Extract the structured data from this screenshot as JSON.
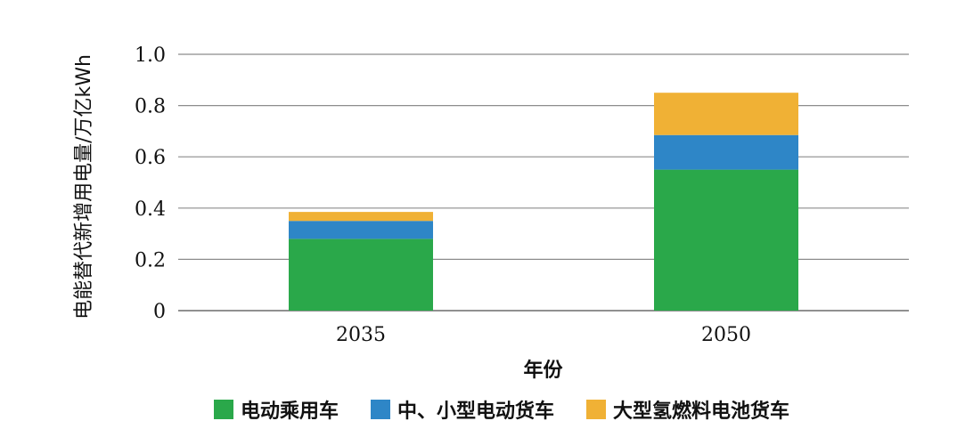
{
  "chart_data": {
    "type": "bar",
    "stacked": true,
    "categories": [
      "2035",
      "2050"
    ],
    "series": [
      {
        "name": "电动乘用车",
        "color": "#2AA84A",
        "values": [
          0.28,
          0.55
        ]
      },
      {
        "name": "中、小型电动货车",
        "color": "#2E86C7",
        "values": [
          0.07,
          0.135
        ]
      },
      {
        "name": "大型氢燃料电池货车",
        "color": "#F0B135",
        "values": [
          0.035,
          0.165
        ]
      }
    ],
    "title": "",
    "xlabel": "年份",
    "ylabel": "电能替代新增用电量/万亿kWh",
    "ylim": [
      0,
      1.0
    ],
    "yticks": [
      "0",
      "0.2",
      "0.4",
      "0.6",
      "0.8",
      "1.0"
    ],
    "grid": true,
    "legend_position": "bottom"
  }
}
